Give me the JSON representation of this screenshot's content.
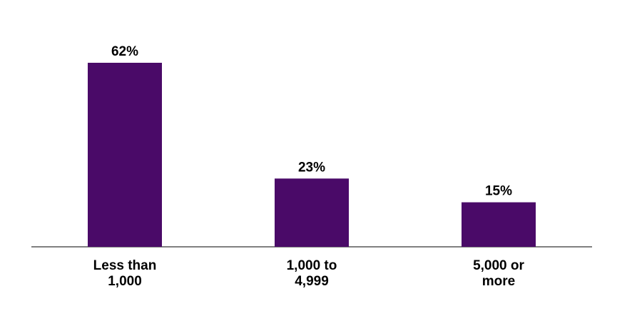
{
  "chart_data": {
    "type": "bar",
    "categories": [
      "Less than 1,000",
      "1,000 to 4,999",
      "5,000 or more"
    ],
    "values": [
      62,
      23,
      15
    ],
    "value_labels": [
      "62%",
      "23%",
      "15%"
    ],
    "color": "#4a0a68"
  }
}
